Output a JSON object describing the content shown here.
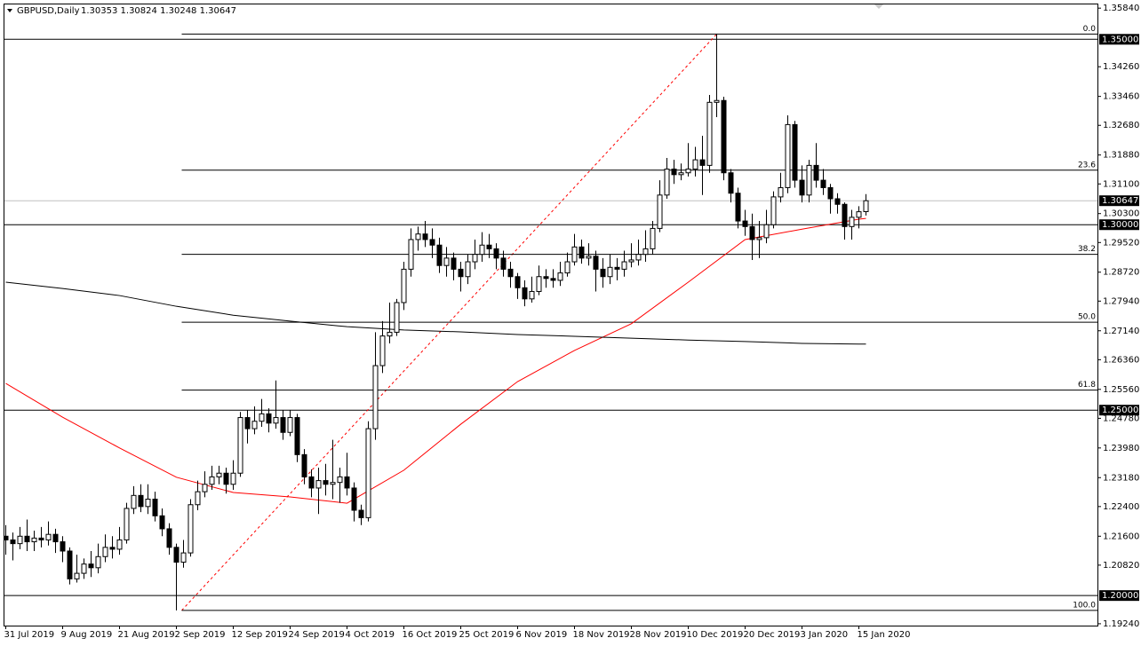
{
  "header": {
    "symbol": "GBPUSD,Daily",
    "quote": "1.30353 1.30824 1.30248 1.30647"
  },
  "chart_data": {
    "type": "candlestick",
    "categories": [
      "31 Jul 2019",
      null,
      null,
      null,
      null,
      null,
      null,
      null,
      "9 Aug 2019",
      null,
      null,
      null,
      null,
      null,
      null,
      null,
      "21 Aug 2019",
      null,
      null,
      null,
      null,
      null,
      null,
      null,
      "2 Sep 2019",
      null,
      null,
      null,
      null,
      null,
      null,
      null,
      "12 Sep 2019",
      null,
      null,
      null,
      null,
      null,
      null,
      null,
      "24 Sep 2019",
      null,
      null,
      null,
      null,
      null,
      null,
      null,
      "4 Oct 2019",
      null,
      null,
      null,
      null,
      null,
      null,
      null,
      "16 Oct 2019",
      null,
      null,
      null,
      null,
      null,
      null,
      null,
      "25 Oct 2019",
      null,
      null,
      null,
      null,
      null,
      null,
      null,
      "6 Nov 2019",
      null,
      null,
      null,
      null,
      null,
      null,
      null,
      "18 Nov 2019",
      null,
      null,
      null,
      null,
      null,
      null,
      null,
      "28 Nov 2019",
      null,
      null,
      null,
      null,
      null,
      null,
      null,
      "10 Dec 2019",
      null,
      null,
      null,
      null,
      null,
      null,
      null,
      "20 Dec 2019",
      null,
      null,
      null,
      null,
      null,
      null,
      null,
      "3 Jan 2020",
      null,
      null,
      null,
      null,
      null,
      null,
      null,
      "15 Jan 2020",
      null
    ],
    "open": [
      1.216,
      1.215,
      1.214,
      1.216,
      1.2145,
      1.2155,
      1.215,
      1.2165,
      1.2145,
      1.212,
      1.2045,
      1.206,
      1.2085,
      1.2075,
      1.2105,
      1.213,
      1.2125,
      1.215,
      1.2235,
      1.227,
      1.224,
      1.226,
      1.2215,
      1.218,
      1.213,
      1.209,
      1.2115,
      1.2245,
      1.228,
      1.23,
      1.232,
      1.233,
      1.23,
      1.233,
      1.248,
      1.245,
      1.247,
      1.249,
      1.2465,
      1.248,
      1.244,
      1.248,
      1.238,
      1.232,
      1.229,
      1.231,
      1.23,
      1.2305,
      1.232,
      1.229,
      1.223,
      1.221,
      1.245,
      1.262,
      1.27,
      1.271,
      1.279,
      1.288,
      1.296,
      1.2975,
      1.296,
      1.2945,
      1.289,
      1.291,
      1.288,
      1.286,
      1.29,
      1.292,
      1.2945,
      1.2935,
      1.291,
      1.288,
      1.286,
      1.283,
      1.28,
      1.282,
      1.286,
      1.2855,
      1.285,
      1.287,
      1.29,
      1.294,
      1.291,
      1.2915,
      1.288,
      1.286,
      1.2885,
      1.288,
      1.29,
      1.2905,
      1.292,
      1.2935,
      1.299,
      1.308,
      1.315,
      1.3135,
      1.314,
      1.315,
      1.3175,
      1.316,
      1.333,
      1.3335,
      1.314,
      1.3085,
      1.301,
      1.2995,
      1.296,
      1.2965,
      1.3,
      1.3075,
      1.31,
      1.327,
      1.312,
      1.308,
      1.316,
      1.312,
      1.31,
      1.307,
      1.3055,
      1.2995,
      1.302,
      1.30353
    ],
    "high": [
      1.219,
      1.217,
      1.2185,
      1.2205,
      1.2175,
      1.2185,
      1.22,
      1.218,
      1.216,
      1.213,
      1.211,
      1.21,
      1.212,
      1.214,
      1.2165,
      1.216,
      1.2185,
      1.225,
      1.2295,
      1.23,
      1.23,
      1.228,
      1.2235,
      1.2195,
      1.214,
      1.215,
      1.226,
      1.231,
      1.2335,
      1.235,
      1.235,
      1.2345,
      1.2365,
      1.2495,
      1.25,
      1.251,
      1.253,
      1.2505,
      1.258,
      1.25,
      1.25,
      1.249,
      1.2395,
      1.234,
      1.2345,
      1.2355,
      1.242,
      1.2345,
      1.2385,
      1.2305,
      1.2245,
      1.247,
      1.271,
      1.274,
      1.279,
      1.28,
      1.29,
      1.299,
      1.2995,
      1.301,
      1.299,
      1.2965,
      1.294,
      1.2925,
      1.29,
      1.292,
      1.296,
      1.298,
      1.2975,
      1.295,
      1.293,
      1.29,
      1.287,
      1.285,
      1.286,
      1.289,
      1.288,
      1.288,
      1.29,
      1.2925,
      1.2975,
      1.296,
      1.295,
      1.293,
      1.291,
      1.292,
      1.291,
      1.293,
      1.295,
      1.296,
      1.2985,
      1.301,
      1.312,
      1.318,
      1.3175,
      1.3165,
      1.322,
      1.321,
      1.324,
      1.335,
      1.3514,
      1.3345,
      1.315,
      1.31,
      1.304,
      1.303,
      1.301,
      1.304,
      1.309,
      1.314,
      1.3295,
      1.328,
      1.316,
      1.3175,
      1.322,
      1.315,
      1.311,
      1.3085,
      1.306,
      1.304,
      1.305,
      1.30824
    ],
    "low": [
      1.211,
      1.2095,
      1.2125,
      1.212,
      1.212,
      1.213,
      1.2135,
      1.2115,
      1.209,
      1.203,
      1.2035,
      1.2045,
      1.205,
      1.206,
      1.209,
      1.21,
      1.211,
      1.214,
      1.222,
      1.2225,
      1.222,
      1.22,
      1.216,
      1.211,
      1.196,
      1.2075,
      1.2105,
      1.223,
      1.2265,
      1.2285,
      1.23,
      1.2275,
      1.2285,
      1.232,
      1.241,
      1.2435,
      1.2455,
      1.244,
      1.245,
      1.242,
      1.243,
      1.236,
      1.23,
      1.2265,
      1.222,
      1.227,
      1.226,
      1.225,
      1.227,
      1.22,
      1.219,
      1.22,
      1.242,
      1.26,
      1.268,
      1.27,
      1.277,
      1.286,
      1.293,
      1.294,
      1.291,
      1.287,
      1.286,
      1.285,
      1.282,
      1.284,
      1.288,
      1.29,
      1.291,
      1.288,
      1.286,
      1.283,
      1.28,
      1.278,
      1.279,
      1.281,
      1.283,
      1.283,
      1.2835,
      1.286,
      1.289,
      1.2895,
      1.289,
      1.282,
      1.283,
      1.284,
      1.285,
      1.286,
      1.2885,
      1.289,
      1.29,
      1.292,
      1.298,
      1.307,
      1.311,
      1.312,
      1.313,
      1.313,
      1.308,
      1.314,
      1.329,
      1.312,
      1.306,
      1.299,
      1.297,
      1.2905,
      1.291,
      1.295,
      1.299,
      1.306,
      1.3085,
      1.31,
      1.306,
      1.306,
      1.31,
      1.308,
      1.303,
      1.303,
      1.296,
      1.296,
      1.299,
      1.30248
    ],
    "close": [
      1.215,
      1.214,
      1.216,
      1.2145,
      1.2155,
      1.215,
      1.2165,
      1.2145,
      1.212,
      1.2045,
      1.206,
      1.2085,
      1.2075,
      1.2105,
      1.213,
      1.2125,
      1.215,
      1.2235,
      1.227,
      1.224,
      1.226,
      1.2215,
      1.218,
      1.213,
      1.209,
      1.2115,
      1.2245,
      1.228,
      1.23,
      1.232,
      1.233,
      1.23,
      1.233,
      1.248,
      1.245,
      1.247,
      1.249,
      1.2465,
      1.248,
      1.244,
      1.248,
      1.238,
      1.232,
      1.229,
      1.231,
      1.23,
      1.2305,
      1.232,
      1.229,
      1.223,
      1.221,
      1.245,
      1.262,
      1.27,
      1.271,
      1.279,
      1.288,
      1.296,
      1.2975,
      1.296,
      1.2945,
      1.289,
      1.291,
      1.288,
      1.286,
      1.29,
      1.292,
      1.2945,
      1.2935,
      1.291,
      1.288,
      1.286,
      1.283,
      1.28,
      1.282,
      1.286,
      1.2855,
      1.285,
      1.287,
      1.29,
      1.294,
      1.291,
      1.2915,
      1.288,
      1.286,
      1.2885,
      1.288,
      1.29,
      1.2905,
      1.292,
      1.2935,
      1.299,
      1.308,
      1.315,
      1.3135,
      1.314,
      1.315,
      1.3175,
      1.316,
      1.333,
      1.3335,
      1.314,
      1.3085,
      1.301,
      1.2995,
      1.296,
      1.2965,
      1.3,
      1.3075,
      1.31,
      1.327,
      1.312,
      1.308,
      1.316,
      1.312,
      1.31,
      1.307,
      1.3055,
      1.2995,
      1.302,
      1.3035,
      1.30647
    ],
    "up_color": "#ffffff",
    "down_color": "#000000",
    "ylim": [
      1.1919,
      1.3594
    ],
    "yticks": [
      {
        "value": 1.3584,
        "label": "1.35840"
      },
      {
        "value": 1.3426,
        "label": "1.34260"
      },
      {
        "value": 1.3346,
        "label": "1.33460"
      },
      {
        "value": 1.3268,
        "label": "1.32680"
      },
      {
        "value": 1.3188,
        "label": "1.31880"
      },
      {
        "value": 1.311,
        "label": "1.31100"
      },
      {
        "value": 1.303,
        "label": "1.30300"
      },
      {
        "value": 1.2952,
        "label": "1.29520"
      },
      {
        "value": 1.2872,
        "label": "1.28720"
      },
      {
        "value": 1.2794,
        "label": "1.27940"
      },
      {
        "value": 1.2714,
        "label": "1.27140"
      },
      {
        "value": 1.2636,
        "label": "1.26360"
      },
      {
        "value": 1.2556,
        "label": "1.25560"
      },
      {
        "value": 1.2478,
        "label": "1.24780"
      },
      {
        "value": 1.2398,
        "label": "1.23980"
      },
      {
        "value": 1.2318,
        "label": "1.23180"
      },
      {
        "value": 1.224,
        "label": "1.22400"
      },
      {
        "value": 1.216,
        "label": "1.21600"
      },
      {
        "value": 1.2082,
        "label": "1.20820"
      },
      {
        "value": 1.1924,
        "label": "1.19240"
      }
    ],
    "levels": [
      {
        "value": 1.35,
        "label": "1.35000"
      },
      {
        "value": 1.3,
        "label": "1.30000"
      },
      {
        "value": 1.25,
        "label": "1.25000"
      },
      {
        "value": 1.2,
        "label": "1.20000"
      }
    ],
    "current_price": {
      "value": 1.30647,
      "label": "1.30647"
    },
    "fibonacci": {
      "start_index": 24,
      "end_index": 100,
      "levels": [
        {
          "value": 1.3514,
          "label": "0.0"
        },
        {
          "value": 1.3147,
          "label": "23.6"
        },
        {
          "value": 1.292,
          "label": "38.2"
        },
        {
          "value": 1.2737,
          "label": "50.0"
        },
        {
          "value": 1.2554,
          "label": "61.8"
        },
        {
          "value": 1.196,
          "label": "100.0"
        }
      ]
    },
    "moving_averages": [
      {
        "color": "#ff0000",
        "bar_index": [
          0,
          8,
          16,
          24,
          32,
          40,
          48,
          56,
          64,
          72,
          80,
          88,
          96,
          104,
          112,
          120,
          121
        ],
        "values": [
          1.2572,
          1.2481,
          1.2398,
          1.2319,
          1.2278,
          1.2266,
          1.2249,
          1.2338,
          1.2462,
          1.2577,
          1.2661,
          1.2733,
          1.2845,
          1.296,
          1.2988,
          1.3015,
          1.3017
        ]
      },
      {
        "color": "#000000",
        "bar_index": [
          0,
          8,
          16,
          24,
          32,
          40,
          48,
          56,
          64,
          72,
          80,
          88,
          96,
          104,
          112,
          120,
          121
        ],
        "values": [
          1.2845,
          1.2828,
          1.2809,
          1.278,
          1.2756,
          1.274,
          1.2725,
          1.2716,
          1.2711,
          1.2704,
          1.2699,
          1.2694,
          1.2689,
          1.2685,
          1.268,
          1.2678,
          1.2678
        ]
      }
    ]
  }
}
